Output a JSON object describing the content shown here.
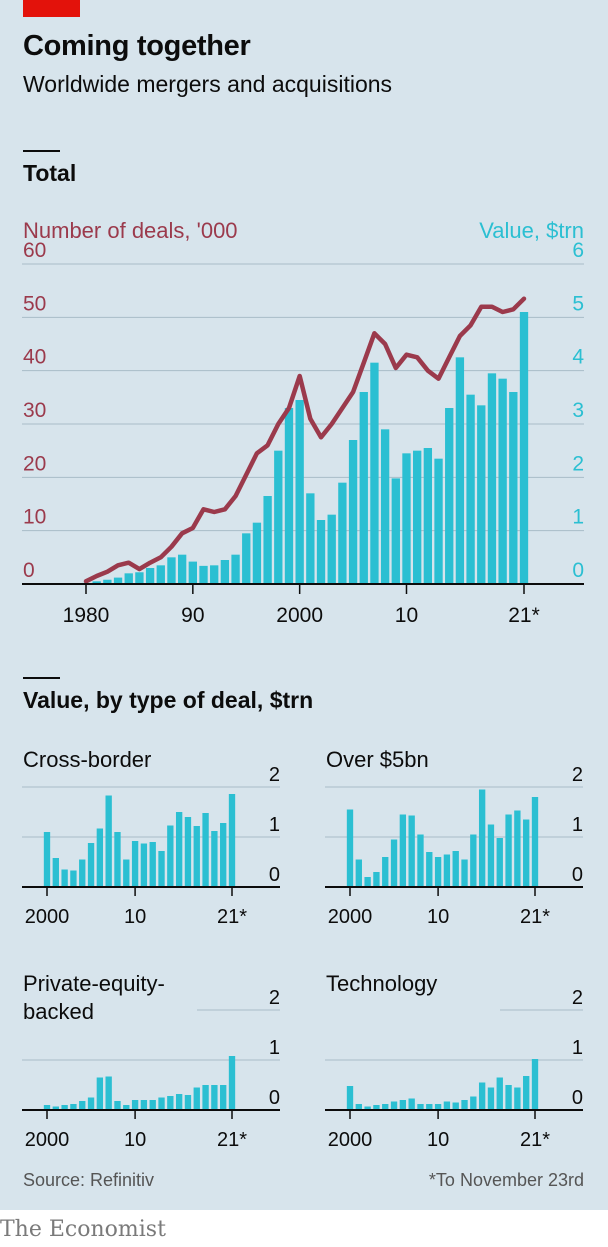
{
  "header": {
    "title": "Coming together",
    "subtitle": "Worldwide mergers and acquisitions"
  },
  "sections": {
    "total": "Total",
    "by_type": "Value, by type of deal, $trn"
  },
  "footer": {
    "source": "Source: Refinitiv",
    "footnote": "*To November 23rd",
    "brand": "The Economist"
  },
  "colors": {
    "background": "#d7e4ec",
    "bars": "#2bbfd2",
    "line": "#9b3a4c",
    "brand_red": "#e3120b"
  },
  "chart_data": [
    {
      "type": "bar+line",
      "title": "Total",
      "x": [
        1980,
        1981,
        1982,
        1983,
        1984,
        1985,
        1986,
        1987,
        1988,
        1989,
        1990,
        1991,
        1992,
        1993,
        1994,
        1995,
        1996,
        1997,
        1998,
        1999,
        2000,
        2001,
        2002,
        2003,
        2004,
        2005,
        2006,
        2007,
        2008,
        2009,
        2010,
        2011,
        2012,
        2013,
        2014,
        2015,
        2016,
        2017,
        2018,
        2019,
        2020,
        2021
      ],
      "x_tick_labels": [
        "1980",
        "90",
        "2000",
        "10",
        "21*"
      ],
      "x_tick_values": [
        1980,
        1990,
        2000,
        2010,
        2021
      ],
      "left_axis": {
        "label": "Number of deals, '000",
        "ticks": [
          "0",
          "10",
          "20",
          "30",
          "40",
          "50",
          "60"
        ],
        "range": [
          0,
          60
        ]
      },
      "right_axis": {
        "label": "Value, $trn",
        "ticks": [
          "0",
          "1",
          "2",
          "3",
          "4",
          "5",
          "6"
        ],
        "range": [
          0,
          6
        ]
      },
      "series": [
        {
          "name": "Value, $trn",
          "type": "bar",
          "axis": "right",
          "values": [
            0.02,
            0.05,
            0.08,
            0.12,
            0.2,
            0.22,
            0.3,
            0.35,
            0.5,
            0.55,
            0.42,
            0.34,
            0.35,
            0.45,
            0.55,
            0.95,
            1.15,
            1.65,
            2.5,
            3.3,
            3.45,
            1.7,
            1.2,
            1.3,
            1.9,
            2.7,
            3.6,
            4.15,
            2.9,
            1.98,
            2.45,
            2.5,
            2.55,
            2.35,
            3.3,
            4.25,
            3.55,
            3.35,
            3.95,
            3.85,
            3.6,
            5.1
          ]
        },
        {
          "name": "Number of deals, '000",
          "type": "line",
          "axis": "left",
          "values": [
            0.5,
            1.5,
            2.3,
            3.5,
            4,
            2.8,
            4,
            5,
            7,
            9.5,
            10.5,
            14,
            13.5,
            14,
            16.5,
            20.5,
            24.5,
            26,
            30,
            33,
            39,
            31,
            27.5,
            30,
            33,
            36,
            41.5,
            47,
            45,
            40.5,
            43,
            42.5,
            40,
            38.5,
            42.5,
            46.5,
            48.5,
            52,
            52,
            51,
            51.5,
            53.5
          ]
        }
      ]
    },
    {
      "type": "bar",
      "title": "Cross-border",
      "x": [
        2000,
        2001,
        2002,
        2003,
        2004,
        2005,
        2006,
        2007,
        2008,
        2009,
        2010,
        2011,
        2012,
        2013,
        2014,
        2015,
        2016,
        2017,
        2018,
        2019,
        2020,
        2021
      ],
      "x_tick_labels": [
        "2000",
        "10",
        "21*"
      ],
      "x_tick_values": [
        2000,
        2010,
        2021
      ],
      "y_ticks": [
        "0",
        "1",
        "2"
      ],
      "ylim": [
        0,
        2
      ],
      "values": [
        1.1,
        0.58,
        0.35,
        0.33,
        0.55,
        0.88,
        1.17,
        1.83,
        1.1,
        0.55,
        0.92,
        0.87,
        0.9,
        0.72,
        1.23,
        1.5,
        1.4,
        1.22,
        1.48,
        1.12,
        1.28,
        1.86
      ]
    },
    {
      "type": "bar",
      "title": "Over $5bn",
      "x": [
        2000,
        2001,
        2002,
        2003,
        2004,
        2005,
        2006,
        2007,
        2008,
        2009,
        2010,
        2011,
        2012,
        2013,
        2014,
        2015,
        2016,
        2017,
        2018,
        2019,
        2020,
        2021
      ],
      "x_tick_labels": [
        "2000",
        "10",
        "21*"
      ],
      "x_tick_values": [
        2000,
        2010,
        2021
      ],
      "y_ticks": [
        "0",
        "1",
        "2"
      ],
      "ylim": [
        0,
        2
      ],
      "values": [
        1.55,
        0.55,
        0.2,
        0.3,
        0.6,
        0.95,
        1.45,
        1.43,
        1.05,
        0.7,
        0.6,
        0.65,
        0.72,
        0.55,
        1.05,
        1.95,
        1.25,
        0.98,
        1.45,
        1.53,
        1.35,
        1.8
      ]
    },
    {
      "type": "bar",
      "title": "Private-equity-backed",
      "x": [
        2000,
        2001,
        2002,
        2003,
        2004,
        2005,
        2006,
        2007,
        2008,
        2009,
        2010,
        2011,
        2012,
        2013,
        2014,
        2015,
        2016,
        2017,
        2018,
        2019,
        2020,
        2021
      ],
      "x_tick_labels": [
        "2000",
        "10",
        "21*"
      ],
      "x_tick_values": [
        2000,
        2010,
        2021
      ],
      "y_ticks": [
        "0",
        "1",
        "2"
      ],
      "ylim": [
        0,
        2
      ],
      "values": [
        0.1,
        0.07,
        0.1,
        0.12,
        0.18,
        0.25,
        0.65,
        0.67,
        0.18,
        0.1,
        0.2,
        0.2,
        0.2,
        0.25,
        0.28,
        0.32,
        0.3,
        0.45,
        0.5,
        0.5,
        0.5,
        1.08
      ]
    },
    {
      "type": "bar",
      "title": "Technology",
      "x": [
        2000,
        2001,
        2002,
        2003,
        2004,
        2005,
        2006,
        2007,
        2008,
        2009,
        2010,
        2011,
        2012,
        2013,
        2014,
        2015,
        2016,
        2017,
        2018,
        2019,
        2020,
        2021
      ],
      "x_tick_labels": [
        "2000",
        "10",
        "21*"
      ],
      "x_tick_values": [
        2000,
        2010,
        2021
      ],
      "y_ticks": [
        "0",
        "1",
        "2"
      ],
      "ylim": [
        0,
        2
      ],
      "values": [
        0.48,
        0.12,
        0.07,
        0.1,
        0.12,
        0.17,
        0.2,
        0.23,
        0.12,
        0.12,
        0.12,
        0.17,
        0.15,
        0.2,
        0.27,
        0.55,
        0.45,
        0.65,
        0.5,
        0.45,
        0.68,
        1.02
      ]
    }
  ]
}
